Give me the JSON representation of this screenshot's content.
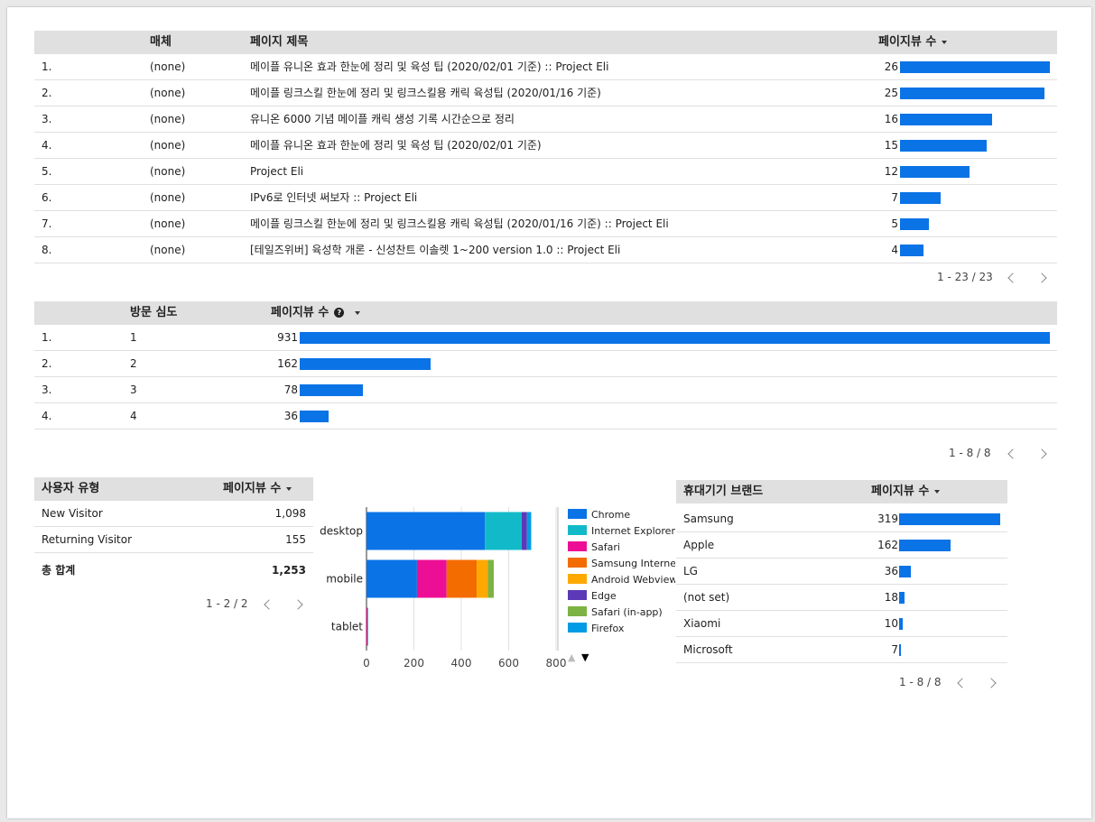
{
  "table1": {
    "columns": {
      "medium": "매체",
      "title": "페이지 제목",
      "views": "페이지뷰 수"
    },
    "rows": [
      {
        "idx": "1.",
        "medium": "(none)",
        "title": "메이플 유니온 효과 한눈에 정리 및 육성 팁 (2020/02/01 기준) :: Project Eli",
        "views": 26
      },
      {
        "idx": "2.",
        "medium": "(none)",
        "title": "메이플 링크스킬 한눈에 정리 및 링크스킬용 캐릭 육성팁 (2020/01/16 기준)",
        "views": 25
      },
      {
        "idx": "3.",
        "medium": "(none)",
        "title": "유니온 6000 기념 메이플 캐릭 생성 기록 시간순으로 정리",
        "views": 16
      },
      {
        "idx": "4.",
        "medium": "(none)",
        "title": "메이플 유니온 효과 한눈에 정리 및 육성 팁 (2020/02/01 기준)",
        "views": 15
      },
      {
        "idx": "5.",
        "medium": "(none)",
        "title": "Project Eli",
        "views": 12
      },
      {
        "idx": "6.",
        "medium": "(none)",
        "title": "IPv6로 인터넷 써보자 :: Project Eli",
        "views": 7
      },
      {
        "idx": "7.",
        "medium": "(none)",
        "title": "메이플 링크스킬 한눈에 정리 및 링크스킬용 캐릭 육성팁 (2020/01/16 기준) :: Project Eli",
        "views": 5
      },
      {
        "idx": "8.",
        "medium": "(none)",
        "title": "[테일즈위버] 육성학 개론 - 신성찬트 이솔렛 1~200 version 1.0 :: Project Eli",
        "views": 4
      }
    ],
    "max_views": 26,
    "pager": "1 - 23 / 23"
  },
  "table2": {
    "columns": {
      "depth": "방문 심도",
      "views": "페이지뷰 수"
    },
    "help_glyph": "?",
    "rows": [
      {
        "idx": "1.",
        "depth": "1",
        "views": 931
      },
      {
        "idx": "2.",
        "depth": "2",
        "views": 162
      },
      {
        "idx": "3.",
        "depth": "3",
        "views": 78
      },
      {
        "idx": "4.",
        "depth": "4",
        "views": 36
      }
    ],
    "max_views": 931,
    "pager": "1 - 8 / 8"
  },
  "table3": {
    "columns": {
      "type": "사용자 유형",
      "views": "페이지뷰 수"
    },
    "rows": [
      {
        "type": "New Visitor",
        "views": "1,098"
      },
      {
        "type": "Returning Visitor",
        "views": "155"
      }
    ],
    "total_label": "총 합계",
    "total_value": "1,253",
    "pager": "1 - 2 / 2"
  },
  "table4": {
    "columns": {
      "brand": "휴대기기 브랜드",
      "views": "페이지뷰 수"
    },
    "rows": [
      {
        "brand": "Samsung",
        "views": 319
      },
      {
        "brand": "Apple",
        "views": 162
      },
      {
        "brand": "LG",
        "views": 36
      },
      {
        "brand": "(not set)",
        "views": 18
      },
      {
        "brand": "Xiaomi",
        "views": 10
      },
      {
        "brand": "Microsoft",
        "views": 7
      }
    ],
    "max_views": 319,
    "pager": "1 - 8 / 8"
  },
  "chart_data": {
    "type": "bar",
    "orientation": "horizontal",
    "stacked": true,
    "categories": [
      "desktop",
      "mobile",
      "tablet"
    ],
    "xlim": [
      0,
      800
    ],
    "xticks": [
      "0",
      "200",
      "400",
      "600",
      "800"
    ],
    "grid": true,
    "legend_position": "right",
    "series": [
      {
        "name": "Chrome",
        "color": "#0a73e6",
        "values": [
          500,
          213,
          0
        ]
      },
      {
        "name": "Internet Explorer",
        "color": "#12bac9",
        "values": [
          155,
          0,
          0
        ]
      },
      {
        "name": "Safari",
        "color": "#ec0f95",
        "values": [
          0,
          125,
          5
        ]
      },
      {
        "name": "Samsung Internet",
        "color": "#f36c00",
        "values": [
          0,
          127,
          0
        ]
      },
      {
        "name": "Android Webview",
        "color": "#ffa900",
        "values": [
          0,
          47,
          0
        ]
      },
      {
        "name": "Edge",
        "color": "#5c39b7",
        "values": [
          22,
          0,
          0
        ]
      },
      {
        "name": "Safari (in-app)",
        "color": "#7cb342",
        "values": [
          0,
          25,
          0
        ]
      },
      {
        "name": "Firefox",
        "color": "#039be5",
        "values": [
          18,
          0,
          2
        ]
      }
    ]
  },
  "legend_nav": {
    "up": "▲",
    "down": "▼"
  }
}
